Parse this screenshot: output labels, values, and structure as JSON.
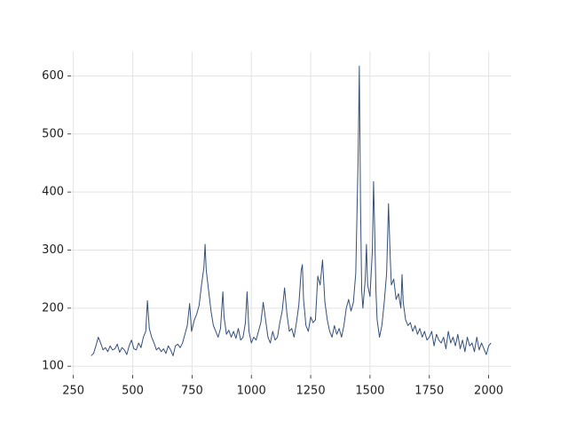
{
  "chart_data": {
    "type": "line",
    "x": [
      325,
      335,
      345,
      355,
      365,
      375,
      385,
      395,
      405,
      415,
      425,
      435,
      445,
      455,
      465,
      475,
      485,
      495,
      505,
      515,
      525,
      535,
      545,
      555,
      562,
      570,
      580,
      590,
      600,
      610,
      620,
      630,
      640,
      650,
      660,
      670,
      680,
      690,
      700,
      710,
      720,
      730,
      740,
      748,
      760,
      770,
      780,
      790,
      800,
      805,
      810,
      820,
      830,
      840,
      850,
      860,
      870,
      880,
      885,
      895,
      905,
      915,
      925,
      935,
      945,
      955,
      965,
      975,
      982,
      990,
      1000,
      1010,
      1020,
      1030,
      1040,
      1050,
      1060,
      1070,
      1080,
      1090,
      1100,
      1110,
      1120,
      1130,
      1140,
      1150,
      1160,
      1170,
      1180,
      1190,
      1200,
      1210,
      1215,
      1220,
      1230,
      1240,
      1250,
      1260,
      1270,
      1280,
      1290,
      1300,
      1310,
      1320,
      1330,
      1340,
      1350,
      1360,
      1370,
      1380,
      1390,
      1400,
      1410,
      1420,
      1430,
      1440,
      1450,
      1455,
      1460,
      1465,
      1470,
      1480,
      1485,
      1490,
      1500,
      1510,
      1515,
      1520,
      1525,
      1530,
      1540,
      1550,
      1560,
      1570,
      1578,
      1585,
      1590,
      1600,
      1610,
      1620,
      1630,
      1635,
      1640,
      1650,
      1660,
      1670,
      1680,
      1690,
      1700,
      1710,
      1720,
      1730,
      1740,
      1750,
      1760,
      1770,
      1780,
      1790,
      1800,
      1810,
      1820,
      1830,
      1840,
      1850,
      1860,
      1870,
      1880,
      1890,
      1900,
      1910,
      1920,
      1930,
      1940,
      1950,
      1960,
      1970,
      1980,
      1990,
      2000,
      2010
    ],
    "series": [
      {
        "color": "#34507a",
        "values": [
          118,
          122,
          135,
          150,
          140,
          128,
          132,
          125,
          135,
          128,
          130,
          138,
          124,
          132,
          128,
          120,
          135,
          145,
          130,
          128,
          140,
          132,
          150,
          160,
          213,
          165,
          150,
          140,
          128,
          132,
          125,
          130,
          122,
          135,
          128,
          118,
          135,
          138,
          132,
          140,
          155,
          170,
          208,
          160,
          180,
          190,
          205,
          240,
          270,
          310,
          265,
          230,
          195,
          170,
          160,
          150,
          165,
          228,
          185,
          155,
          162,
          150,
          160,
          148,
          165,
          145,
          150,
          175,
          228,
          160,
          140,
          150,
          145,
          160,
          175,
          210,
          180,
          150,
          140,
          160,
          145,
          150,
          175,
          195,
          235,
          190,
          160,
          165,
          150,
          175,
          205,
          265,
          275,
          215,
          170,
          160,
          185,
          175,
          180,
          255,
          240,
          283,
          210,
          180,
          160,
          150,
          170,
          155,
          165,
          150,
          170,
          200,
          215,
          195,
          210,
          260,
          460,
          617,
          380,
          230,
          200,
          250,
          310,
          240,
          220,
          300,
          418,
          330,
          230,
          180,
          150,
          170,
          210,
          260,
          380,
          290,
          240,
          250,
          215,
          225,
          200,
          258,
          210,
          180,
          170,
          175,
          160,
          170,
          155,
          165,
          150,
          160,
          145,
          150,
          160,
          135,
          155,
          145,
          140,
          150,
          130,
          160,
          140,
          150,
          135,
          155,
          130,
          145,
          125,
          150,
          135,
          140,
          125,
          150,
          128,
          140,
          130,
          120,
          135,
          140
        ]
      }
    ],
    "xlim": [
      240,
      2095
    ],
    "ylim": [
      85,
      642
    ],
    "xticks": [
      250,
      500,
      750,
      1000,
      1250,
      1500,
      1750,
      2000
    ],
    "yticks": [
      100,
      200,
      300,
      400,
      500,
      600
    ],
    "grid": true
  }
}
